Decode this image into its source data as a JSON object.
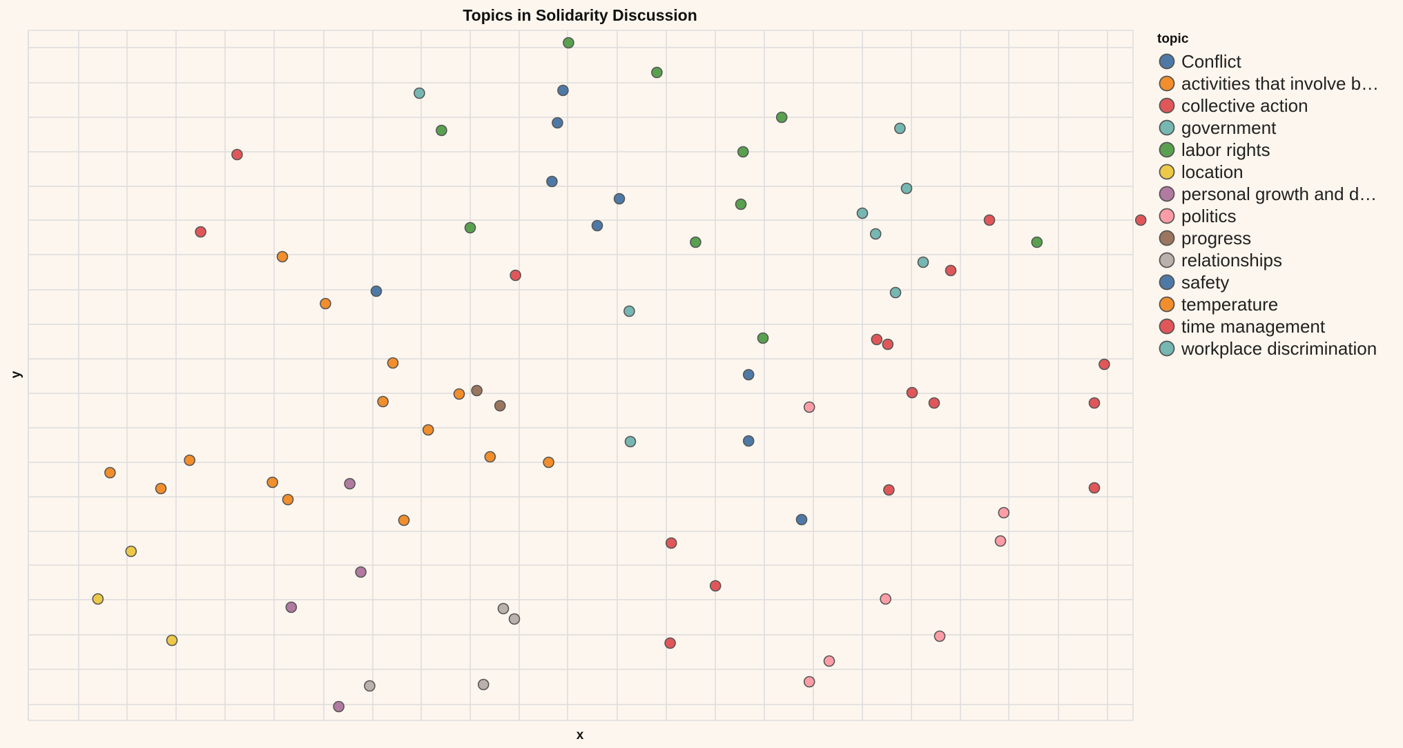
{
  "chart_data": {
    "type": "scatter",
    "title": "Topics in Solidarity Discussion",
    "xlabel": "x",
    "ylabel": "y",
    "legend_title": "topic",
    "legend_position": "right",
    "grid": true,
    "xlim": [
      0,
      100
    ],
    "ylim": [
      0,
      100
    ],
    "series": [
      {
        "name": "Conflict",
        "color": "#4e79a7",
        "points": [
          [
            48.4,
            91.3
          ],
          [
            47.4,
            78.1
          ],
          [
            53.5,
            75.6
          ],
          [
            31.5,
            62.2
          ],
          [
            65.2,
            50.1
          ],
          [
            65.2,
            40.5
          ],
          [
            70.0,
            29.1
          ]
        ]
      },
      {
        "name": "activities that involve b…",
        "color": "#f28e2b",
        "points": [
          [
            26.9,
            60.4
          ],
          [
            7.4,
            35.9
          ],
          [
            14.6,
            37.7
          ],
          [
            23.5,
            32.0
          ],
          [
            47.1,
            37.4
          ]
        ]
      },
      {
        "name": "collective action",
        "color": "#e15759",
        "points": [
          [
            44.1,
            64.5
          ],
          [
            62.2,
            19.5
          ],
          [
            87.0,
            72.5
          ],
          [
            83.5,
            65.2
          ],
          [
            100.7,
            72.5
          ],
          [
            96.5,
            46.0
          ],
          [
            96.5,
            33.7
          ]
        ]
      },
      {
        "name": "government",
        "color": "#76b7b2",
        "points": [
          [
            35.4,
            90.9
          ],
          [
            76.7,
            70.5
          ],
          [
            54.4,
            59.3
          ],
          [
            54.5,
            40.4
          ]
        ]
      },
      {
        "name": "labor rights",
        "color": "#59a14f",
        "points": [
          [
            48.9,
            98.2
          ],
          [
            56.9,
            93.9
          ],
          [
            37.4,
            85.5
          ],
          [
            68.2,
            87.4
          ],
          [
            64.7,
            82.4
          ],
          [
            64.5,
            74.8
          ],
          [
            40.0,
            71.4
          ],
          [
            60.4,
            69.3
          ],
          [
            66.5,
            55.4
          ],
          [
            91.3,
            69.3
          ]
        ]
      },
      {
        "name": "location",
        "color": "#edc948",
        "points": [
          [
            6.3,
            17.6
          ],
          [
            9.3,
            24.5
          ],
          [
            13.0,
            11.6
          ]
        ]
      },
      {
        "name": "personal growth and d…",
        "color": "#b07aa1",
        "points": [
          [
            29.1,
            34.3
          ],
          [
            30.1,
            21.5
          ],
          [
            23.8,
            16.4
          ],
          [
            28.1,
            2.0
          ]
        ]
      },
      {
        "name": "politics",
        "color": "#ff9da7",
        "points": [
          [
            70.7,
            45.4
          ],
          [
            88.3,
            30.1
          ],
          [
            88.0,
            26.0
          ],
          [
            77.6,
            17.6
          ],
          [
            82.5,
            12.2
          ],
          [
            72.5,
            8.6
          ],
          [
            70.7,
            5.6
          ]
        ]
      },
      {
        "name": "progress",
        "color": "#9c755f",
        "points": [
          [
            40.6,
            47.8
          ],
          [
            42.7,
            45.6
          ]
        ]
      },
      {
        "name": "relationships",
        "color": "#bab0ac",
        "points": [
          [
            43.0,
            16.2
          ],
          [
            44.0,
            14.7
          ],
          [
            30.9,
            5.0
          ],
          [
            41.2,
            5.2
          ]
        ]
      },
      {
        "name": "safety",
        "color": "#4e79a7",
        "points": [
          [
            47.9,
            86.6
          ],
          [
            51.5,
            71.7
          ]
        ]
      },
      {
        "name": "temperature",
        "color": "#f28e2b",
        "points": [
          [
            23.0,
            67.2
          ],
          [
            33.0,
            51.8
          ],
          [
            32.1,
            46.2
          ],
          [
            39.0,
            47.3
          ],
          [
            22.1,
            34.5
          ],
          [
            41.8,
            38.2
          ],
          [
            12.0,
            33.6
          ],
          [
            34.0,
            29.0
          ],
          [
            36.2,
            42.1
          ]
        ]
      },
      {
        "name": "time management",
        "color": "#e15759",
        "points": [
          [
            18.9,
            82.0
          ],
          [
            15.6,
            70.8
          ],
          [
            58.1,
            11.2
          ],
          [
            76.8,
            55.2
          ],
          [
            77.8,
            54.5
          ],
          [
            80.0,
            47.5
          ],
          [
            77.9,
            33.4
          ],
          [
            97.4,
            51.6
          ],
          [
            82.0,
            46.0
          ],
          [
            58.2,
            25.7
          ]
        ]
      },
      {
        "name": "workplace discrimination",
        "color": "#76b7b2",
        "points": [
          [
            78.9,
            85.8
          ],
          [
            79.5,
            77.1
          ],
          [
            75.5,
            73.5
          ],
          [
            81.0,
            66.4
          ],
          [
            78.5,
            62.0
          ]
        ]
      }
    ]
  }
}
